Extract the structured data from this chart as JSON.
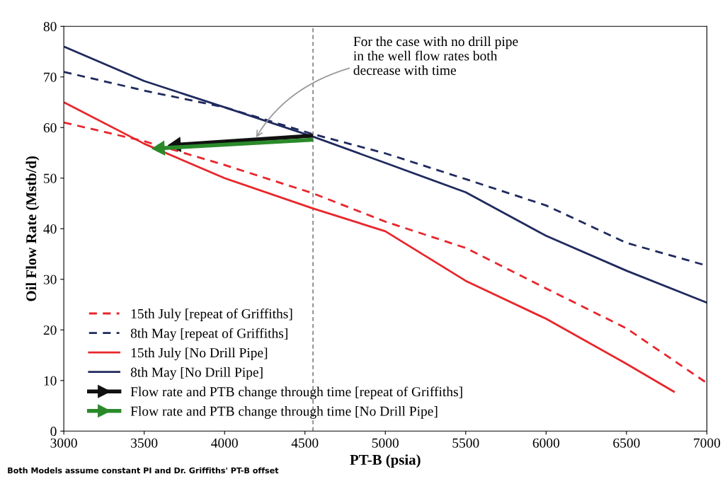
{
  "chart_data": {
    "type": "line",
    "xlabel": "PT-B (psia)",
    "ylabel": "Oil Flow Rate (Mstb/d)",
    "xlim": [
      3000,
      7000
    ],
    "xticks": [
      3000,
      3500,
      4000,
      4500,
      5000,
      5500,
      6000,
      6500,
      7000
    ],
    "ylim": [
      0,
      80
    ],
    "yticks": [
      0,
      10,
      20,
      30,
      40,
      50,
      60,
      70,
      80
    ],
    "grid": false,
    "legend": "bottom left",
    "series": [
      {
        "name": "15th July [repeat of Griffiths]",
        "color": "#e8262b",
        "line_style": "dashed",
        "x": [
          3000,
          3500,
          4000,
          4550,
          5000,
          5500,
          6000,
          6500,
          7000
        ],
        "values": [
          61,
          57.3,
          52.6,
          47,
          41.4,
          36.2,
          28.2,
          20.3,
          9.5
        ]
      },
      {
        "name": "8th May [repeat of Griffiths]",
        "color": "#1f2a5e",
        "line_style": "dashed",
        "x": [
          3000,
          3500,
          4000,
          4550,
          5000,
          5500,
          6000,
          6500,
          7000
        ],
        "values": [
          71,
          67.3,
          64,
          58.7,
          54.9,
          49.8,
          44.6,
          37.2,
          32.7
        ]
      },
      {
        "name": "15th July [No Drill Pipe]",
        "color": "#e8262b",
        "line_style": "solid",
        "x": [
          3000,
          3500,
          4000,
          4550,
          5000,
          5500,
          6000,
          6500,
          6800
        ],
        "values": [
          65,
          56.8,
          50,
          44,
          39.5,
          29.7,
          22.2,
          13.3,
          7.7
        ]
      },
      {
        "name": "8th May [No Drill Pipe]",
        "color": "#1f2a5e",
        "line_style": "solid",
        "x": [
          3000,
          3500,
          4000,
          4550,
          5000,
          5500,
          6000,
          6500,
          7000
        ],
        "values": [
          76,
          69.2,
          64,
          58.2,
          53,
          47.2,
          38.6,
          31.7,
          25.4
        ]
      },
      {
        "name": "Flow rate and PTB change through time [repeat of Griffiths]",
        "color": "#111111",
        "line_style": "solid",
        "marker": "triangle",
        "x": [
          4550,
          3700
        ],
        "values": [
          58.4,
          56.6
        ]
      },
      {
        "name": "Flow rate and PTB change through time [No Drill Pipe]",
        "color": "#2a8a2a",
        "line_style": "solid",
        "marker": "triangle",
        "x": [
          4550,
          3600
        ],
        "values": [
          57.6,
          55.9
        ]
      }
    ],
    "ref_lines": [
      {
        "axis": "x",
        "value": 4550,
        "color": "#666666",
        "line_style": "dashed"
      }
    ],
    "annotations": [
      {
        "text": "For the case with no drill pipe\nin the well flow rates both\ndecrease with time",
        "x": 4190,
        "y": 57.7
      },
      "Both Models assume constant PI and Dr. Griffiths' PT-B offset"
    ]
  }
}
